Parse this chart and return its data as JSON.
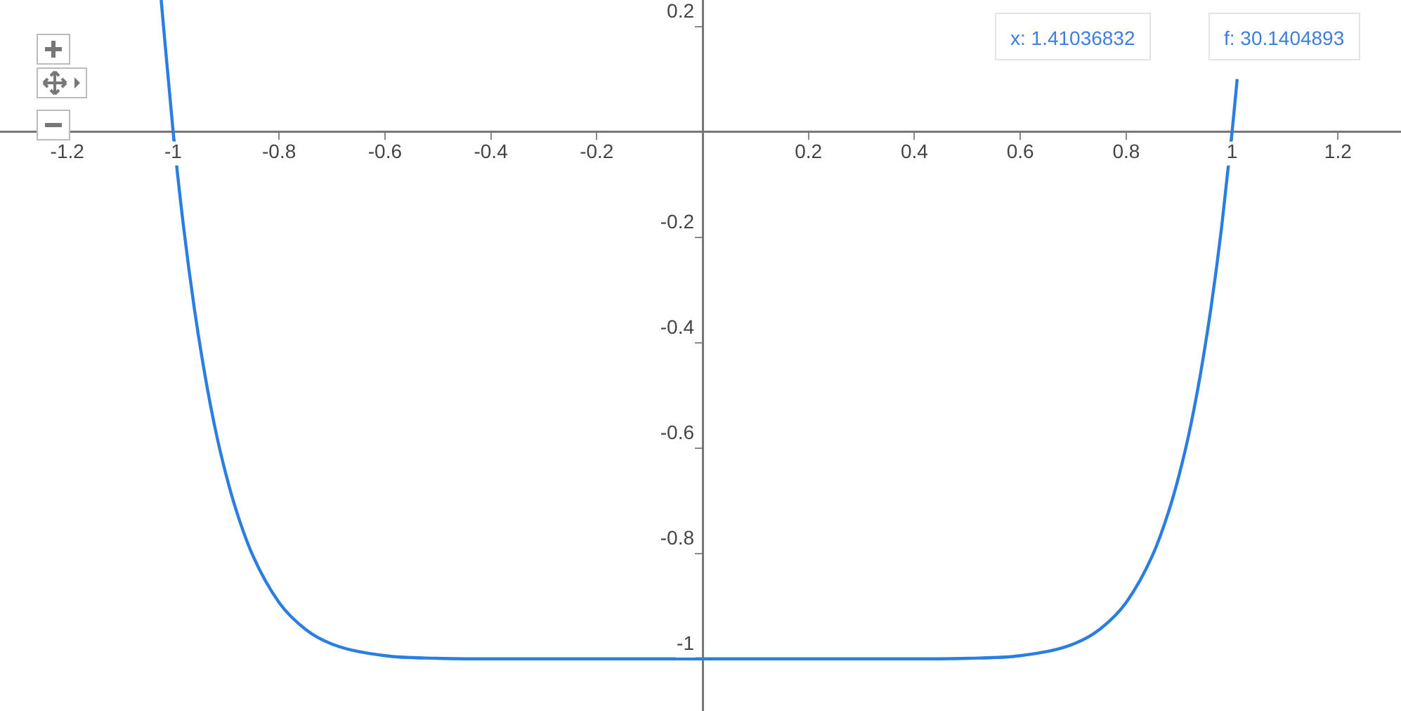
{
  "chart_data": {
    "type": "line",
    "x": [
      -1.0226,
      -1.0,
      -0.98,
      -0.96,
      -0.94,
      -0.92,
      -0.9,
      -0.88,
      -0.85,
      -0.8,
      -0.75,
      -0.7,
      -0.6,
      -0.5,
      -0.4,
      0,
      0.4,
      0.5,
      0.6,
      0.7,
      0.75,
      0.8,
      0.85,
      0.88,
      0.9,
      0.92,
      0.94,
      0.96,
      0.98,
      1.0,
      1.0096
    ],
    "series": [
      {
        "color": "#2a7de1",
        "values": [
          0.25,
          0,
          -0.183,
          -0.335,
          -0.461,
          -0.566,
          -0.651,
          -0.721,
          -0.803,
          -0.893,
          -0.944,
          -0.972,
          -0.994,
          -0.999,
          -1.0,
          -1,
          -1.0,
          -0.999,
          -0.994,
          -0.972,
          -0.944,
          -0.893,
          -0.803,
          -0.721,
          -0.651,
          -0.566,
          -0.461,
          -0.335,
          -0.183,
          0,
          0.1
        ]
      }
    ],
    "xlim": [
      -1.327,
      1.319
    ],
    "ylim": [
      -1.099,
      0.25
    ],
    "xticks": [
      -1.2,
      -1,
      -0.8,
      -0.6,
      -0.4,
      -0.2,
      0.2,
      0.4,
      0.6,
      0.8,
      1,
      1.2
    ],
    "yticks": [
      0.2,
      -0.2,
      -0.4,
      -0.6,
      -0.8,
      -1
    ],
    "grid": false,
    "legend": false,
    "marker": "none",
    "line_style": "solid",
    "annotations": [
      "x: 1.41036832",
      "f: 30.1404893"
    ]
  }
}
